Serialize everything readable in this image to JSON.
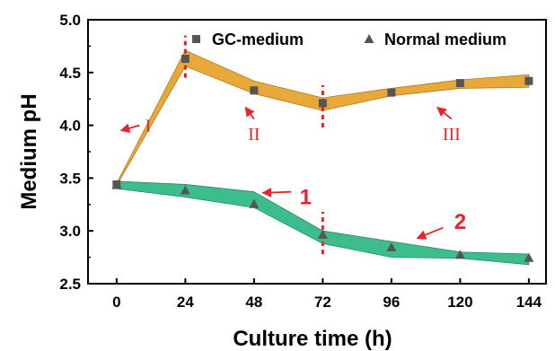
{
  "chart_data": {
    "type": "line",
    "xlabel": "Culture time (h)",
    "ylabel": "Medium pH",
    "x": [
      0,
      24,
      48,
      72,
      96,
      120,
      144
    ],
    "xlim": [
      -10,
      150
    ],
    "ylim": [
      2.5,
      5.0
    ],
    "xticks": [
      "0",
      "24",
      "48",
      "72",
      "96",
      "120",
      "144"
    ],
    "yticks": [
      "2.5",
      "3.0",
      "3.5",
      "4.0",
      "4.5",
      "5.0"
    ],
    "legend_position": "top-right",
    "series": [
      {
        "name": "GC-medium",
        "marker": "square",
        "values": [
          3.44,
          4.63,
          4.33,
          4.21,
          4.31,
          4.4,
          4.42
        ],
        "band_upper": [
          3.45,
          4.71,
          4.42,
          4.26,
          4.35,
          4.43,
          4.48
        ],
        "band_lower": [
          3.43,
          4.56,
          4.3,
          4.14,
          4.28,
          4.35,
          4.36
        ],
        "band_color": "#e8a93a",
        "band_edge": "#b07a1a"
      },
      {
        "name": "Normal medium",
        "marker": "triangle",
        "values": [
          3.43,
          3.38,
          3.25,
          2.96,
          2.84,
          2.77,
          2.74
        ],
        "band_upper": [
          3.47,
          3.44,
          3.37,
          3.0,
          2.9,
          2.8,
          2.78
        ],
        "band_lower": [
          3.4,
          3.32,
          3.22,
          2.88,
          2.75,
          2.74,
          2.68
        ],
        "band_color": "#3dbd8b",
        "band_edge": "#2a8a63"
      }
    ],
    "divider_lines_x": [
      24,
      72
    ],
    "annotations": [
      {
        "text": "I",
        "style": "roman",
        "label_at": [
          11,
          4.0
        ],
        "arrow_from": [
          8,
          4.0
        ],
        "arrow_to": [
          1.5,
          3.95
        ]
      },
      {
        "text": "II",
        "style": "roman",
        "label_at": [
          48,
          3.92
        ],
        "arrow_from": [
          48,
          4.06
        ],
        "arrow_to": [
          45,
          4.17
        ]
      },
      {
        "text": "III",
        "style": "roman",
        "label_at": [
          117,
          3.92
        ],
        "arrow_from": [
          117,
          4.06
        ],
        "arrow_to": [
          112,
          4.17
        ]
      },
      {
        "text": "1",
        "style": "arabic",
        "label_at": [
          66,
          3.31
        ],
        "arrow_from": [
          61,
          3.37
        ],
        "arrow_to": [
          51,
          3.36
        ]
      },
      {
        "text": "2",
        "style": "arabic",
        "label_at": [
          120,
          3.08
        ],
        "arrow_from": [
          114,
          3.03
        ],
        "arrow_to": [
          105,
          2.93
        ]
      }
    ],
    "colors": {
      "arrow": "#e8232a",
      "divider": "#e8232a",
      "marker": "#555555",
      "axis": "#000000"
    }
  }
}
